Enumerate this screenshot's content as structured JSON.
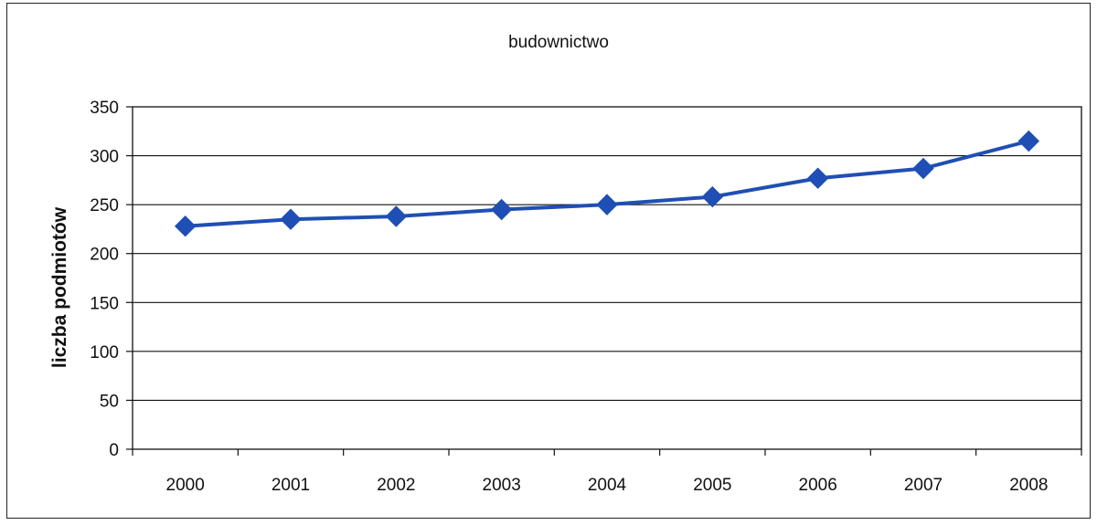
{
  "chart_data": {
    "type": "line",
    "title": "budownictwo",
    "xlabel": "",
    "ylabel": "liczba podmiotów",
    "categories": [
      "2000",
      "2001",
      "2002",
      "2003",
      "2004",
      "2005",
      "2006",
      "2007",
      "2008"
    ],
    "series": [
      {
        "values": [
          228,
          235,
          238,
          245,
          250,
          258,
          277,
          287,
          315
        ]
      }
    ],
    "ylim": [
      0,
      350
    ],
    "yticks": [
      0,
      50,
      100,
      150,
      200,
      250,
      300,
      350
    ],
    "grid": true,
    "legend": "none",
    "marker": "diamond",
    "colors": {
      "series": "#1f4fb4",
      "grid": "#111111",
      "axis": "#111111"
    }
  }
}
